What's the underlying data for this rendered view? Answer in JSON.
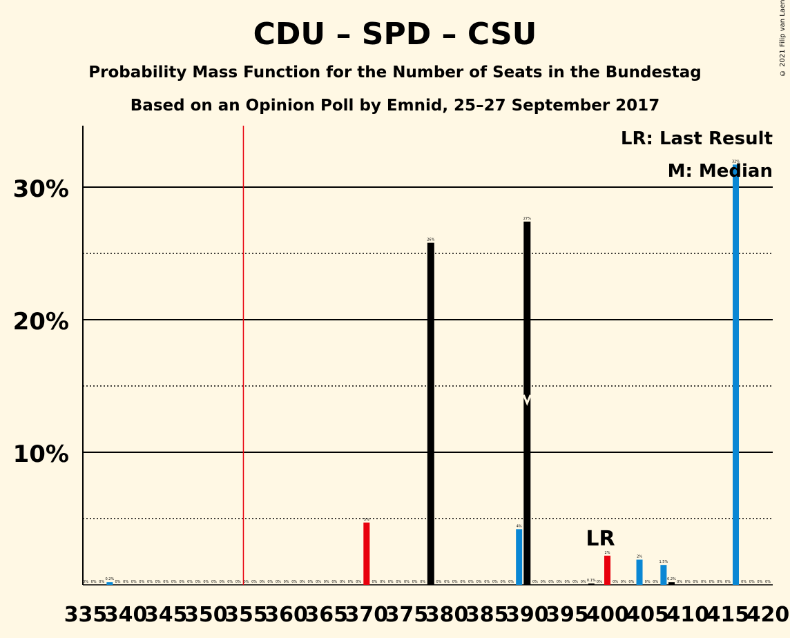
{
  "title": "CDU – SPD – CSU",
  "subtitle": "Probability Mass Function for the Number of Seats in the Bundestag",
  "subtitle2": "Based on an Opinion Poll by Emnid, 25–27 September 2017",
  "copyright": "© 2021 Filip van Laenen",
  "legend": {
    "lr": "LR: Last Result",
    "m": "M: Median"
  },
  "colors": {
    "background": "#fff8e4",
    "highlight": "#e8000d",
    "normal": "#000000",
    "blue": "#0a87d4",
    "majority_line": "#e8000d"
  },
  "chart_data": {
    "type": "bar",
    "title": "CDU – SPD – CSU",
    "xlabel": "",
    "ylabel": "",
    "ylim": [
      0,
      34
    ],
    "x_ticks": [
      335,
      340,
      345,
      350,
      355,
      360,
      365,
      370,
      375,
      380,
      385,
      390,
      395,
      400,
      405,
      410,
      415,
      420
    ],
    "y_ticks": [
      {
        "value": 10,
        "label": "10%"
      },
      {
        "value": 20,
        "label": "20%"
      },
      {
        "value": 30,
        "label": "30%"
      }
    ],
    "minor_gridlines": [
      5,
      15,
      25
    ],
    "majority_line_x": 355,
    "last_result": {
      "x": 400,
      "label": "LR"
    },
    "median": {
      "x": 390
    },
    "bars": [
      {
        "x": 335,
        "value": 0,
        "label": "0%",
        "color": "normal"
      },
      {
        "x": 336,
        "value": 0,
        "label": "0%",
        "color": "normal"
      },
      {
        "x": 337,
        "value": 0,
        "label": "0%",
        "color": "normal"
      },
      {
        "x": 338,
        "value": 0.2,
        "label": "0.2%",
        "color": "blue"
      },
      {
        "x": 339,
        "value": 0,
        "label": "0%",
        "color": "normal"
      },
      {
        "x": 340,
        "value": 0,
        "label": "0%",
        "color": "normal"
      },
      {
        "x": 341,
        "value": 0,
        "label": "0%",
        "color": "normal"
      },
      {
        "x": 342,
        "value": 0,
        "label": "0%",
        "color": "normal"
      },
      {
        "x": 343,
        "value": 0,
        "label": "0%",
        "color": "normal"
      },
      {
        "x": 344,
        "value": 0,
        "label": "0%",
        "color": "normal"
      },
      {
        "x": 345,
        "value": 0,
        "label": "0%",
        "color": "normal"
      },
      {
        "x": 346,
        "value": 0,
        "label": "0%",
        "color": "normal"
      },
      {
        "x": 347,
        "value": 0,
        "label": "0%",
        "color": "normal"
      },
      {
        "x": 348,
        "value": 0,
        "label": "0%",
        "color": "normal"
      },
      {
        "x": 349,
        "value": 0,
        "label": "0%",
        "color": "normal"
      },
      {
        "x": 350,
        "value": 0,
        "label": "0%",
        "color": "normal"
      },
      {
        "x": 351,
        "value": 0,
        "label": "0%",
        "color": "normal"
      },
      {
        "x": 352,
        "value": 0,
        "label": "0%",
        "color": "normal"
      },
      {
        "x": 353,
        "value": 0,
        "label": "0%",
        "color": "normal"
      },
      {
        "x": 354,
        "value": 0,
        "label": "0%",
        "color": "normal"
      },
      {
        "x": 355,
        "value": 0,
        "label": "0%",
        "color": "normal"
      },
      {
        "x": 356,
        "value": 0,
        "label": "0%",
        "color": "normal"
      },
      {
        "x": 357,
        "value": 0,
        "label": "0%",
        "color": "normal"
      },
      {
        "x": 358,
        "value": 0,
        "label": "0%",
        "color": "normal"
      },
      {
        "x": 359,
        "value": 0,
        "label": "0%",
        "color": "normal"
      },
      {
        "x": 360,
        "value": 0,
        "label": "0%",
        "color": "normal"
      },
      {
        "x": 361,
        "value": 0,
        "label": "0%",
        "color": "normal"
      },
      {
        "x": 362,
        "value": 0,
        "label": "0%",
        "color": "normal"
      },
      {
        "x": 363,
        "value": 0,
        "label": "0%",
        "color": "normal"
      },
      {
        "x": 364,
        "value": 0,
        "label": "0%",
        "color": "normal"
      },
      {
        "x": 365,
        "value": 0,
        "label": "0%",
        "color": "normal"
      },
      {
        "x": 366,
        "value": 0,
        "label": "0%",
        "color": "normal"
      },
      {
        "x": 367,
        "value": 0,
        "label": "0%",
        "color": "normal"
      },
      {
        "x": 368,
        "value": 0,
        "label": "0%",
        "color": "normal"
      },
      {
        "x": 369,
        "value": 0,
        "label": "0%",
        "color": "normal"
      },
      {
        "x": 370,
        "value": 4.7,
        "label": "5%",
        "color": "highlight"
      },
      {
        "x": 371,
        "value": 0,
        "label": "0%",
        "color": "normal"
      },
      {
        "x": 372,
        "value": 0,
        "label": "0%",
        "color": "normal"
      },
      {
        "x": 373,
        "value": 0,
        "label": "0%",
        "color": "normal"
      },
      {
        "x": 374,
        "value": 0,
        "label": "0%",
        "color": "normal"
      },
      {
        "x": 375,
        "value": 0,
        "label": "0%",
        "color": "normal"
      },
      {
        "x": 376,
        "value": 0,
        "label": "0%",
        "color": "normal"
      },
      {
        "x": 377,
        "value": 0,
        "label": "0%",
        "color": "normal"
      },
      {
        "x": 378,
        "value": 25.8,
        "label": "26%",
        "color": "normal"
      },
      {
        "x": 379,
        "value": 0,
        "label": "0%",
        "color": "normal"
      },
      {
        "x": 380,
        "value": 0,
        "label": "0%",
        "color": "normal"
      },
      {
        "x": 381,
        "value": 0,
        "label": "0%",
        "color": "normal"
      },
      {
        "x": 382,
        "value": 0,
        "label": "0%",
        "color": "normal"
      },
      {
        "x": 383,
        "value": 0,
        "label": "0%",
        "color": "normal"
      },
      {
        "x": 384,
        "value": 0,
        "label": "0%",
        "color": "normal"
      },
      {
        "x": 385,
        "value": 0,
        "label": "0%",
        "color": "normal"
      },
      {
        "x": 386,
        "value": 0,
        "label": "0%",
        "color": "normal"
      },
      {
        "x": 387,
        "value": 0,
        "label": "0%",
        "color": "normal"
      },
      {
        "x": 388,
        "value": 0,
        "label": "0%",
        "color": "normal"
      },
      {
        "x": 389,
        "value": 4.2,
        "label": "4%",
        "color": "blue"
      },
      {
        "x": 390,
        "value": 27.4,
        "label": "27%",
        "color": "normal"
      },
      {
        "x": 391,
        "value": 0,
        "label": "0%",
        "color": "normal"
      },
      {
        "x": 392,
        "value": 0,
        "label": "0%",
        "color": "normal"
      },
      {
        "x": 393,
        "value": 0,
        "label": "0%",
        "color": "normal"
      },
      {
        "x": 394,
        "value": 0,
        "label": "0%",
        "color": "normal"
      },
      {
        "x": 395,
        "value": 0,
        "label": "0%",
        "color": "normal"
      },
      {
        "x": 396,
        "value": 0,
        "label": "0%",
        "color": "normal"
      },
      {
        "x": 397,
        "value": 0,
        "label": "0%",
        "color": "normal"
      },
      {
        "x": 398,
        "value": 0.1,
        "label": "0.1%",
        "color": "normal"
      },
      {
        "x": 399,
        "value": 0,
        "label": "0%",
        "color": "normal"
      },
      {
        "x": 400,
        "value": 2.2,
        "label": "2%",
        "color": "highlight"
      },
      {
        "x": 401,
        "value": 0,
        "label": "0%",
        "color": "normal"
      },
      {
        "x": 402,
        "value": 0,
        "label": "0%",
        "color": "normal"
      },
      {
        "x": 403,
        "value": 0,
        "label": "0%",
        "color": "normal"
      },
      {
        "x": 404,
        "value": 1.9,
        "label": "2%",
        "color": "blue"
      },
      {
        "x": 405,
        "value": 0,
        "label": "0%",
        "color": "normal"
      },
      {
        "x": 406,
        "value": 0,
        "label": "0%",
        "color": "normal"
      },
      {
        "x": 407,
        "value": 1.5,
        "label": "1.5%",
        "color": "blue"
      },
      {
        "x": 408,
        "value": 0.2,
        "label": "0.2%",
        "color": "normal"
      },
      {
        "x": 409,
        "value": 0,
        "label": "0%",
        "color": "normal"
      },
      {
        "x": 410,
        "value": 0,
        "label": "0%",
        "color": "normal"
      },
      {
        "x": 411,
        "value": 0,
        "label": "0%",
        "color": "normal"
      },
      {
        "x": 412,
        "value": 0,
        "label": "0%",
        "color": "normal"
      },
      {
        "x": 413,
        "value": 0,
        "label": "0%",
        "color": "normal"
      },
      {
        "x": 414,
        "value": 0,
        "label": "0%",
        "color": "normal"
      },
      {
        "x": 415,
        "value": 0,
        "label": "0%",
        "color": "normal"
      },
      {
        "x": 416,
        "value": 31.7,
        "label": "32%",
        "color": "blue"
      },
      {
        "x": 417,
        "value": 0,
        "label": "0%",
        "color": "normal"
      },
      {
        "x": 418,
        "value": 0,
        "label": "0%",
        "color": "normal"
      },
      {
        "x": 419,
        "value": 0,
        "label": "0%",
        "color": "normal"
      },
      {
        "x": 420,
        "value": 0,
        "label": "0%",
        "color": "normal"
      }
    ]
  }
}
